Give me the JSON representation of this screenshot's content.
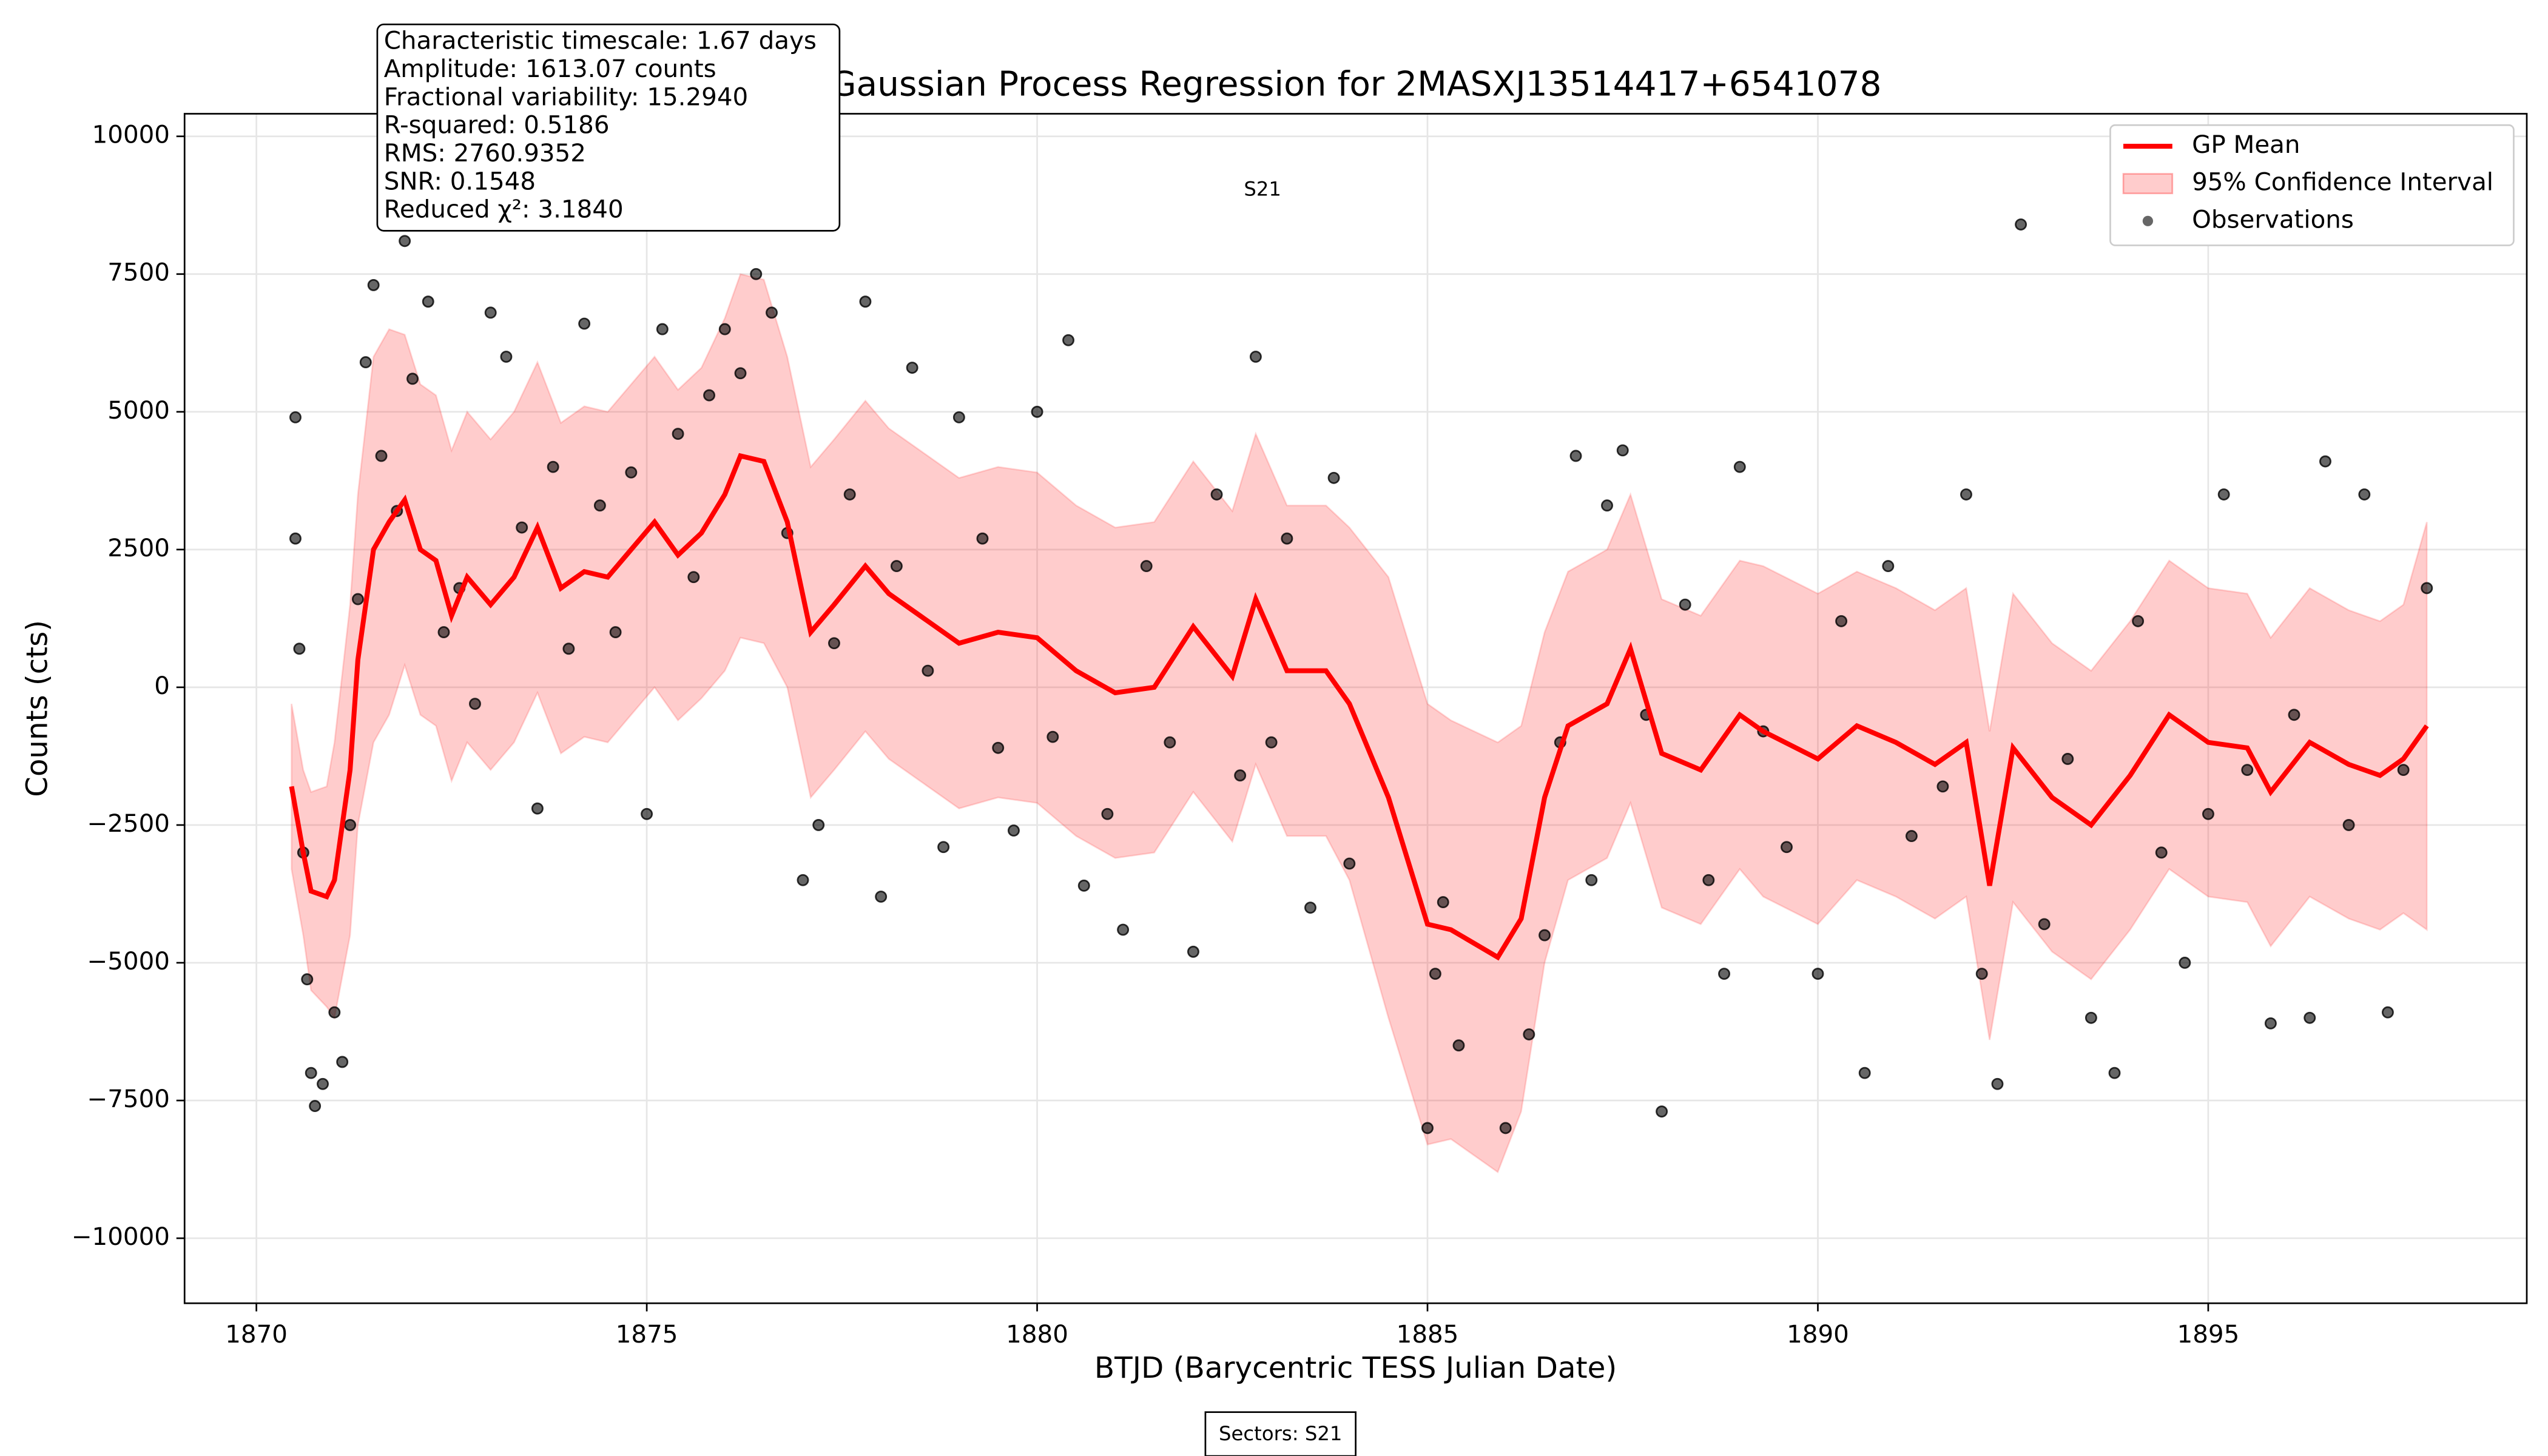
{
  "chart_data": {
    "type": "gp",
    "title": "Gaussian Process Regression for 2MASXJ13514417+6541078",
    "xlabel": "BTJD (Barycentric TESS Julian Date)",
    "ylabel": "Counts (cts)",
    "annotation_lines": [
      "Characteristic timescale: 1.67 days",
      "Amplitude: 1613.07 counts",
      "Fractional variability: 15.2940",
      "R-squared: 0.5186",
      "RMS: 2760.9352",
      "SNR: 0.1548",
      "Reduced χ²: 3.1840"
    ],
    "sector_label": "S21",
    "footer": "Sectors: S21",
    "xlim": [
      1869.08,
      1899.08
    ],
    "ylim": [
      -11180,
      10410
    ],
    "xticks": [
      1870,
      1875,
      1880,
      1885,
      1890,
      1895
    ],
    "yticks": [
      {
        "value": -10000,
        "label": "−10000"
      },
      {
        "value": -7500,
        "label": "−7500"
      },
      {
        "value": -5000,
        "label": "−5000"
      },
      {
        "value": -2500,
        "label": "−2500"
      },
      0,
      2500,
      5000,
      7500,
      10000
    ],
    "grid": true,
    "legend": "upper right",
    "x": [
      1870.45,
      1870.6,
      1870.7,
      1870.9,
      1871.0,
      1871.2,
      1871.3,
      1871.5,
      1871.7,
      1871.9,
      1872.1,
      1872.3,
      1872.5,
      1872.7,
      1873.0,
      1873.3,
      1873.6,
      1873.9,
      1874.2,
      1874.5,
      1874.8,
      1875.1,
      1875.4,
      1875.7,
      1876.0,
      1876.2,
      1876.5,
      1876.8,
      1877.1,
      1877.4,
      1877.8,
      1878.1,
      1878.5,
      1879.0,
      1879.5,
      1880.0,
      1880.5,
      1881.0,
      1881.5,
      1882.0,
      1882.5,
      1882.8,
      1883.2,
      1883.7,
      1884.0,
      1884.5,
      1885.0,
      1885.3,
      1885.9,
      1886.2,
      1886.5,
      1886.8,
      1887.3,
      1887.6,
      1888.0,
      1888.5,
      1889.0,
      1889.3,
      1890.0,
      1890.5,
      1891.0,
      1891.5,
      1891.9,
      1892.2,
      1892.5,
      1893.0,
      1893.5,
      1894.0,
      1894.5,
      1895.0,
      1895.5,
      1895.8,
      1896.3,
      1896.8,
      1897.2,
      1897.5,
      1897.8
    ],
    "series": [
      {
        "name": "GP Mean",
        "color": "#ff0000",
        "values": [
          -1800,
          -3000,
          -3700,
          -3800,
          -3500,
          -1500,
          500,
          2500,
          3000,
          3400,
          2500,
          2300,
          1300,
          2000,
          1500,
          2000,
          2900,
          1800,
          2100,
          2000,
          2500,
          3000,
          2400,
          2800,
          3500,
          4200,
          4100,
          3000,
          1000,
          1500,
          2200,
          1700,
          1300,
          800,
          1000,
          900,
          300,
          -100,
          0,
          1100,
          200,
          1600,
          300,
          300,
          -300,
          -2000,
          -4300,
          -4400,
          -4900,
          -4200,
          -2000,
          -700,
          -300,
          700,
          -1200,
          -1500,
          -500,
          -800,
          -1300,
          -700,
          -1000,
          -1400,
          -1000,
          -3600,
          -1100,
          -2000,
          -2500,
          -1600,
          -500,
          -1000,
          -1100,
          -1900,
          -1000,
          -1400,
          -1600,
          -1300,
          -700
        ]
      },
      {
        "name": "95% Confidence Interval",
        "color": "#ff0000",
        "lower": [
          -3300,
          -4500,
          -5500,
          -5800,
          -6000,
          -4500,
          -2500,
          -1000,
          -500,
          400,
          -500,
          -700,
          -1700,
          -1000,
          -1500,
          -1000,
          -100,
          -1200,
          -900,
          -1000,
          -500,
          0,
          -600,
          -200,
          300,
          900,
          800,
          0,
          -2000,
          -1500,
          -800,
          -1300,
          -1700,
          -2200,
          -2000,
          -2100,
          -2700,
          -3100,
          -3000,
          -1900,
          -2800,
          -1400,
          -2700,
          -2700,
          -3500,
          -6000,
          -8300,
          -8200,
          -8800,
          -7700,
          -5000,
          -3500,
          -3100,
          -2100,
          -4000,
          -4300,
          -3300,
          -3800,
          -4300,
          -3500,
          -3800,
          -4200,
          -3800,
          -6400,
          -3900,
          -4800,
          -5300,
          -4400,
          -3300,
          -3800,
          -3900,
          -4700,
          -3800,
          -4200,
          -4400,
          -4100,
          -4400
        ],
        "upper": [
          -300,
          -1500,
          -1900,
          -1800,
          -1000,
          1500,
          3500,
          6000,
          6500,
          6400,
          5500,
          5300,
          4300,
          5000,
          4500,
          5000,
          5900,
          4800,
          5100,
          5000,
          5500,
          6000,
          5400,
          5800,
          6700,
          7500,
          7400,
          6000,
          4000,
          4500,
          5200,
          4700,
          4300,
          3800,
          4000,
          3900,
          3300,
          2900,
          3000,
          4100,
          3200,
          4600,
          3300,
          3300,
          2900,
          2000,
          -300,
          -600,
          -1000,
          -700,
          1000,
          2100,
          2500,
          3500,
          1600,
          1300,
          2300,
          2200,
          1700,
          2100,
          1800,
          1400,
          1800,
          -800,
          1700,
          800,
          300,
          1200,
          2300,
          1800,
          1700,
          900,
          1800,
          1400,
          1200,
          1500,
          3000
        ]
      },
      {
        "name": "Observations",
        "color": "#000000",
        "x": [
          1870.5,
          1870.5,
          1870.55,
          1870.6,
          1870.65,
          1870.7,
          1870.75,
          1870.85,
          1871.0,
          1871.1,
          1871.2,
          1871.3,
          1871.4,
          1871.5,
          1871.6,
          1871.8,
          1871.9,
          1872.0,
          1872.2,
          1872.4,
          1872.6,
          1872.8,
          1873.0,
          1873.2,
          1873.4,
          1873.6,
          1873.8,
          1874.0,
          1874.2,
          1874.4,
          1874.6,
          1874.8,
          1875.0,
          1875.2,
          1875.4,
          1875.6,
          1875.8,
          1876.0,
          1876.2,
          1876.4,
          1876.6,
          1876.8,
          1877.0,
          1877.2,
          1877.4,
          1877.6,
          1877.8,
          1878.0,
          1878.2,
          1878.4,
          1878.6,
          1878.8,
          1879.0,
          1879.3,
          1879.5,
          1879.7,
          1880.0,
          1880.2,
          1880.4,
          1880.6,
          1880.9,
          1881.1,
          1881.4,
          1881.7,
          1882.0,
          1882.3,
          1882.6,
          1882.8,
          1883.0,
          1883.2,
          1883.5,
          1883.8,
          1884.0,
          1885.0,
          1885.1,
          1885.2,
          1885.4,
          1886.0,
          1886.3,
          1886.5,
          1886.7,
          1886.9,
          1887.1,
          1887.3,
          1887.5,
          1887.8,
          1888.0,
          1888.3,
          1888.6,
          1888.8,
          1889.0,
          1889.3,
          1889.6,
          1890.0,
          1890.3,
          1890.6,
          1890.9,
          1891.2,
          1891.6,
          1891.9,
          1892.1,
          1892.3,
          1892.6,
          1892.9,
          1893.2,
          1893.5,
          1893.8,
          1894.1,
          1894.4,
          1894.7,
          1895.0,
          1895.2,
          1895.5,
          1895.8,
          1896.1,
          1896.3,
          1896.5,
          1896.8,
          1897.0,
          1897.3,
          1897.5,
          1897.8
        ],
        "values": [
          4900,
          2700,
          700,
          -3000,
          -5300,
          -7000,
          -7600,
          -7200,
          -5900,
          -6800,
          -2500,
          1600,
          5900,
          7300,
          4200,
          3200,
          8100,
          5600,
          7000,
          1000,
          1800,
          -300,
          6800,
          6000,
          2900,
          -2200,
          4000,
          700,
          6600,
          3300,
          1000,
          3900,
          -2300,
          6500,
          4600,
          2000,
          5300,
          6500,
          5700,
          7500,
          6800,
          2800,
          -3500,
          -2500,
          800,
          3500,
          7000,
          -3800,
          2200,
          5800,
          300,
          -2900,
          4900,
          2700,
          -1100,
          -2600,
          5000,
          -900,
          6300,
          -3600,
          -2300,
          -4400,
          2200,
          -1000,
          -4800,
          3500,
          -1600,
          6000,
          -1000,
          2700,
          -4000,
          3800,
          -3200,
          -8000,
          -5200,
          -3900,
          -6500,
          -8000,
          -6300,
          -4500,
          -1000,
          4200,
          -3500,
          3300,
          4300,
          -500,
          -7700,
          1500,
          -3500,
          -5200,
          4000,
          -800,
          -2900,
          -5200,
          1200,
          -7000,
          2200,
          -2700,
          -1800,
          3500,
          -5200,
          -7200,
          8400,
          -4300,
          -1300,
          -6000,
          -7000,
          1200,
          -3000,
          -5000,
          -2300,
          3500,
          -1500,
          -6100,
          -500,
          -6000,
          4100,
          -2500,
          3500,
          -5900,
          -1500,
          1800
        ]
      }
    ]
  }
}
